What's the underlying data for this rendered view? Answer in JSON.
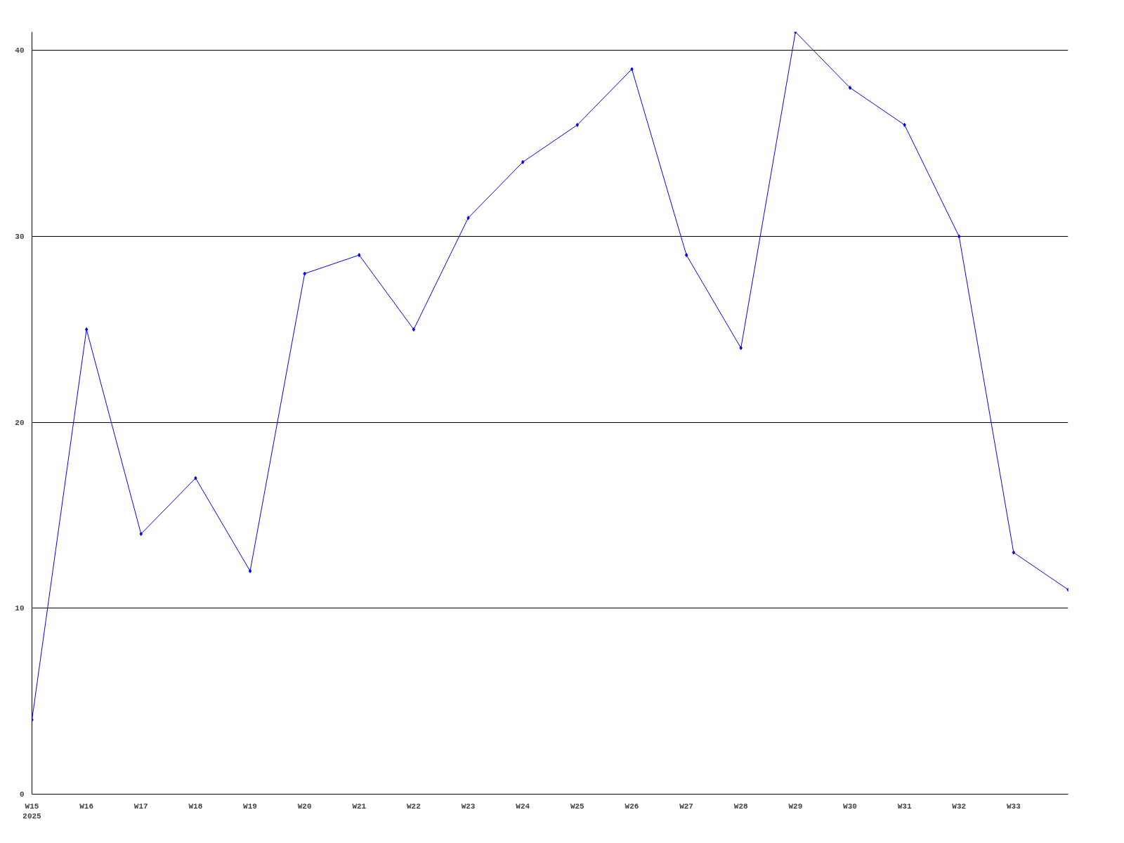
{
  "chart_data": {
    "type": "line",
    "categories": [
      "W15\n2025",
      "W16",
      "W17",
      "W18",
      "W19",
      "W20",
      "W21",
      "W22",
      "W23",
      "W24",
      "W25",
      "W26",
      "W27",
      "W28",
      "W29",
      "W30",
      "W31",
      "W32",
      "W33",
      null
    ],
    "series": [
      {
        "color": "#0000ff",
        "values": [
          4,
          25,
          14,
          17,
          12,
          28,
          29,
          25,
          31,
          34,
          36,
          39,
          29,
          24,
          41,
          38,
          36,
          30,
          13,
          11
        ]
      }
    ],
    "ylim": [
      0,
      41
    ],
    "yticks": [
      0,
      10,
      20,
      30,
      40
    ],
    "grid": "y",
    "marker": "diamond",
    "line_style": "solid"
  }
}
